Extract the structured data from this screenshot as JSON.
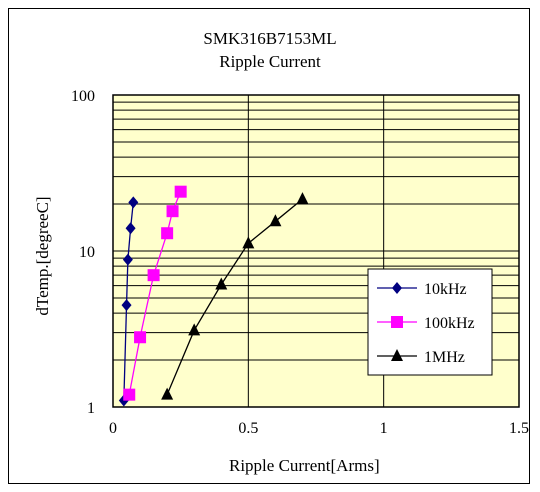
{
  "chart_data": {
    "type": "line",
    "title": "SMK316B7153ML",
    "subtitle": "Ripple Current",
    "xlabel": "Ripple Current[Arms]",
    "ylabel": "dTemp.[degreeC]",
    "xlim": [
      0,
      1.5
    ],
    "ylim": [
      1,
      100
    ],
    "y_scale": "log",
    "x_ticks": [
      0,
      0.5,
      1,
      1.5
    ],
    "x_tick_labels": [
      "0",
      "0.5",
      "1",
      "1.5"
    ],
    "y_ticks": [
      1,
      10,
      100
    ],
    "y_tick_labels": [
      "1",
      "10",
      "100"
    ],
    "grid": true,
    "plot_background": "#ffffcc",
    "legend_position": "lower-right",
    "series": [
      {
        "name": "10kHz",
        "color": "#000080",
        "marker": "diamond",
        "x": [
          0.04,
          0.05,
          0.055,
          0.065,
          0.075
        ],
        "y": [
          1.1,
          4.5,
          8.8,
          14,
          20.5
        ]
      },
      {
        "name": "100kHz",
        "color": "#ff00ff",
        "marker": "square",
        "x": [
          0.06,
          0.1,
          0.15,
          0.2,
          0.22,
          0.25
        ],
        "y": [
          1.2,
          2.8,
          7,
          13,
          18,
          24
        ]
      },
      {
        "name": "1MHz",
        "color": "#000000",
        "marker": "triangle",
        "x": [
          0.2,
          0.3,
          0.4,
          0.5,
          0.6,
          0.7
        ],
        "y": [
          1.2,
          3.1,
          6.1,
          11.2,
          15.5,
          21.5
        ]
      }
    ]
  }
}
